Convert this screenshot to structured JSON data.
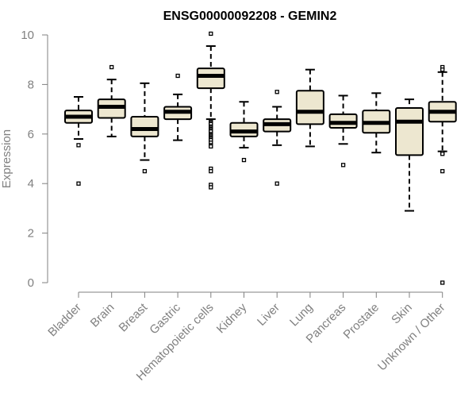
{
  "chart_data": {
    "type": "boxplot",
    "title": "ENSG00000092208 - GEMIN2",
    "xlabel": "",
    "ylabel": "Expression",
    "ylim": [
      0,
      10
    ],
    "yticks": [
      "0",
      "2",
      "4",
      "6",
      "8",
      "10"
    ],
    "grid": false,
    "box_fill": "#ede7d0",
    "box_stroke": "#000000",
    "axis_color": "#808080",
    "categories": [
      "Bladder",
      "Brain",
      "Breast",
      "Gastric",
      "Hematopoietic cells",
      "Kidney",
      "Liver",
      "Lung",
      "Pancreas",
      "Prostate",
      "Skin",
      "Unknown / Other"
    ],
    "boxes": [
      {
        "whisker_low": 5.8,
        "q1": 6.45,
        "median": 6.7,
        "q3": 6.95,
        "whisker_high": 7.5,
        "outliers": [
          5.55,
          4.0
        ]
      },
      {
        "whisker_low": 5.9,
        "q1": 6.65,
        "median": 7.1,
        "q3": 7.4,
        "whisker_high": 8.2,
        "outliers": [
          8.7
        ]
      },
      {
        "whisker_low": 4.95,
        "q1": 5.9,
        "median": 6.2,
        "q3": 6.7,
        "whisker_high": 8.05,
        "outliers": [
          4.5
        ]
      },
      {
        "whisker_low": 5.75,
        "q1": 6.6,
        "median": 6.9,
        "q3": 7.1,
        "whisker_high": 7.6,
        "outliers": [
          8.35
        ]
      },
      {
        "whisker_low": 6.6,
        "q1": 7.85,
        "median": 8.35,
        "q3": 8.65,
        "whisker_high": 9.55,
        "outliers": [
          10.05,
          6.5,
          6.45,
          6.4,
          6.3,
          6.25,
          6.2,
          6.15,
          6.1,
          6.0,
          5.95,
          5.9,
          5.85,
          5.8,
          5.75,
          5.65,
          5.55,
          5.5,
          4.6,
          4.5,
          3.95,
          3.85
        ]
      },
      {
        "whisker_low": 5.45,
        "q1": 5.9,
        "median": 6.1,
        "q3": 6.45,
        "whisker_high": 7.3,
        "outliers": [
          4.95
        ]
      },
      {
        "whisker_low": 5.55,
        "q1": 6.1,
        "median": 6.4,
        "q3": 6.6,
        "whisker_high": 7.1,
        "outliers": [
          7.7,
          4.0
        ]
      },
      {
        "whisker_low": 5.5,
        "q1": 6.4,
        "median": 6.9,
        "q3": 7.75,
        "whisker_high": 8.6,
        "outliers": []
      },
      {
        "whisker_low": 5.6,
        "q1": 6.25,
        "median": 6.45,
        "q3": 6.8,
        "whisker_high": 7.55,
        "outliers": [
          4.75
        ]
      },
      {
        "whisker_low": 5.25,
        "q1": 6.05,
        "median": 6.45,
        "q3": 6.95,
        "whisker_high": 7.65,
        "outliers": []
      },
      {
        "whisker_low": 2.9,
        "q1": 5.15,
        "median": 6.5,
        "q3": 7.05,
        "whisker_high": 7.4,
        "outliers": []
      },
      {
        "whisker_low": 5.3,
        "q1": 6.5,
        "median": 6.9,
        "q3": 7.3,
        "whisker_high": 8.5,
        "outliers": [
          8.7,
          8.6,
          5.25,
          5.2,
          4.5,
          0.0
        ]
      }
    ]
  }
}
